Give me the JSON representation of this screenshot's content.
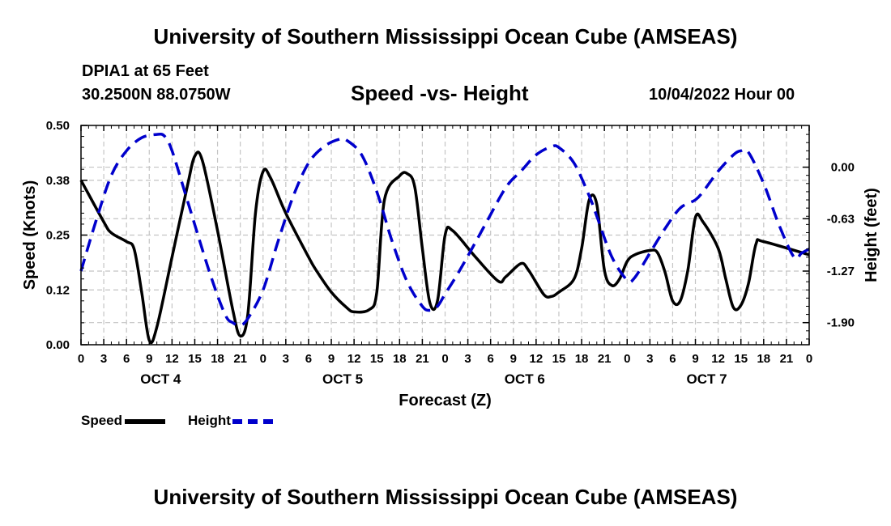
{
  "header": {
    "title": "University of Southern Mississippi Ocean Cube (AMSEAS)",
    "station": "DPIA1 at 65 Feet",
    "coordinates": "30.2500N  88.0750W",
    "chart_title": "Speed -vs- Height",
    "run_time": "10/04/2022 Hour 00"
  },
  "footer": {
    "title": "University of Southern Mississippi Ocean Cube (AMSEAS)"
  },
  "legend": {
    "speed_label": "Speed",
    "height_label": "Height"
  },
  "chart_data": {
    "type": "line",
    "title": "Speed -vs- Height",
    "xlabel": "Forecast (Z)",
    "ylabel_left": "Speed (Knots)",
    "ylabel_right": "Height (feet)",
    "x_range_hours": [
      0,
      96
    ],
    "x_tick_labels": [
      "0",
      "3",
      "6",
      "9",
      "12",
      "15",
      "18",
      "21",
      "0",
      "3",
      "6",
      "9",
      "12",
      "15",
      "18",
      "21",
      "0",
      "3",
      "6",
      "9",
      "12",
      "15",
      "18",
      "21",
      "0",
      "3",
      "6",
      "9",
      "12",
      "15",
      "18",
      "21",
      "0"
    ],
    "day_labels": [
      {
        "label": "OCT 4",
        "hour": 10.5
      },
      {
        "label": "OCT 5",
        "hour": 34.5
      },
      {
        "label": "OCT 6",
        "hour": 58.5
      },
      {
        "label": "OCT 7",
        "hour": 82.5
      }
    ],
    "y_left": {
      "range": [
        0,
        0.5
      ],
      "ticks": [
        0.0,
        0.125,
        0.25,
        0.375,
        0.5
      ],
      "tick_labels": [
        "0.00",
        "0.12",
        "0.25",
        "0.38",
        "0.50"
      ]
    },
    "y_right": {
      "range": [
        -2.17,
        0.51
      ],
      "ticks": [
        0.0,
        -0.63,
        -1.27,
        -1.9
      ],
      "tick_labels": [
        "0.00",
        "-0.63",
        "-1.27",
        "-1.90"
      ]
    },
    "grid": true,
    "legend_position": "bottom-left",
    "series": [
      {
        "name": "Speed",
        "axis": "left",
        "color": "#000000",
        "dash": "solid",
        "points": [
          [
            0,
            0.375
          ],
          [
            3,
            0.28
          ],
          [
            4,
            0.255
          ],
          [
            6,
            0.235
          ],
          [
            7,
            0.218
          ],
          [
            8,
            0.12
          ],
          [
            9,
            0.01
          ],
          [
            10,
            0.04
          ],
          [
            12,
            0.2
          ],
          [
            14,
            0.36
          ],
          [
            15,
            0.43
          ],
          [
            16,
            0.42
          ],
          [
            18,
            0.26
          ],
          [
            20,
            0.08
          ],
          [
            21,
            0.02
          ],
          [
            22,
            0.07
          ],
          [
            23,
            0.3
          ],
          [
            24,
            0.395
          ],
          [
            25,
            0.38
          ],
          [
            27,
            0.3
          ],
          [
            30,
            0.2
          ],
          [
            31,
            0.17
          ],
          [
            33,
            0.12
          ],
          [
            35,
            0.085
          ],
          [
            36,
            0.075
          ],
          [
            38,
            0.08
          ],
          [
            39,
            0.12
          ],
          [
            40,
            0.33
          ],
          [
            42,
            0.385
          ],
          [
            43,
            0.39
          ],
          [
            44,
            0.36
          ],
          [
            45,
            0.22
          ],
          [
            46,
            0.095
          ],
          [
            47,
            0.1
          ],
          [
            48,
            0.25
          ],
          [
            49,
            0.26
          ],
          [
            52,
            0.2
          ],
          [
            55,
            0.145
          ],
          [
            56,
            0.155
          ],
          [
            58,
            0.185
          ],
          [
            59,
            0.17
          ],
          [
            61,
            0.115
          ],
          [
            62,
            0.11
          ],
          [
            63,
            0.12
          ],
          [
            65,
            0.15
          ],
          [
            66,
            0.22
          ],
          [
            67,
            0.33
          ],
          [
            68,
            0.32
          ],
          [
            69,
            0.17
          ],
          [
            70,
            0.135
          ],
          [
            71,
            0.15
          ],
          [
            72,
            0.19
          ],
          [
            73,
            0.205
          ],
          [
            75,
            0.215
          ],
          [
            76,
            0.21
          ],
          [
            77,
            0.165
          ],
          [
            78,
            0.1
          ],
          [
            79,
            0.1
          ],
          [
            80,
            0.17
          ],
          [
            81,
            0.29
          ],
          [
            82,
            0.28
          ],
          [
            84,
            0.22
          ],
          [
            85,
            0.15
          ],
          [
            86,
            0.085
          ],
          [
            87,
            0.09
          ],
          [
            88,
            0.14
          ],
          [
            89,
            0.23
          ],
          [
            90,
            0.235
          ],
          [
            96,
            0.205
          ]
        ]
      },
      {
        "name": "Height",
        "axis": "right",
        "color": "#0000CC",
        "dash": "dashed",
        "points": [
          [
            0,
            -1.27
          ],
          [
            2,
            -0.65
          ],
          [
            4,
            -0.1
          ],
          [
            6,
            0.2
          ],
          [
            8,
            0.36
          ],
          [
            10,
            0.4
          ],
          [
            11,
            0.38
          ],
          [
            12,
            0.2
          ],
          [
            14,
            -0.4
          ],
          [
            17,
            -1.3
          ],
          [
            19,
            -1.8
          ],
          [
            20,
            -1.9
          ],
          [
            21,
            -1.93
          ],
          [
            22,
            -1.85
          ],
          [
            24,
            -1.5
          ],
          [
            26,
            -0.9
          ],
          [
            28,
            -0.35
          ],
          [
            30,
            0.05
          ],
          [
            32,
            0.25
          ],
          [
            34,
            0.34
          ],
          [
            35,
            0.33
          ],
          [
            37,
            0.15
          ],
          [
            39,
            -0.3
          ],
          [
            41,
            -0.9
          ],
          [
            43,
            -1.4
          ],
          [
            45,
            -1.7
          ],
          [
            46,
            -1.75
          ],
          [
            47,
            -1.7
          ],
          [
            48,
            -1.55
          ],
          [
            50,
            -1.25
          ],
          [
            53,
            -0.75
          ],
          [
            56,
            -0.25
          ],
          [
            58,
            -0.05
          ],
          [
            60,
            0.15
          ],
          [
            62,
            0.25
          ],
          [
            63,
            0.24
          ],
          [
            65,
            0.05
          ],
          [
            67,
            -0.35
          ],
          [
            68,
            -0.6
          ],
          [
            70,
            -1.1
          ],
          [
            72,
            -1.38
          ],
          [
            73,
            -1.35
          ],
          [
            75,
            -1.05
          ],
          [
            77,
            -0.75
          ],
          [
            79,
            -0.5
          ],
          [
            81,
            -0.4
          ],
          [
            82,
            -0.3
          ],
          [
            84,
            -0.05
          ],
          [
            86,
            0.15
          ],
          [
            87,
            0.2
          ],
          [
            88,
            0.18
          ],
          [
            90,
            -0.2
          ],
          [
            92,
            -0.7
          ],
          [
            94,
            -1.1
          ],
          [
            95,
            -1.05
          ],
          [
            96,
            -1.0
          ]
        ]
      }
    ]
  }
}
